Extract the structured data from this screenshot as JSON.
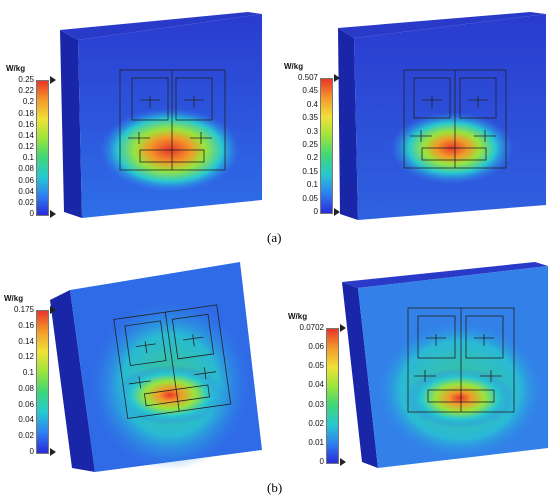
{
  "figure": {
    "captions": [
      "(a)",
      "(b)"
    ],
    "panels": [
      {
        "id": "a-left",
        "unit": "W/kg",
        "ticks": [
          "0.25",
          "0.22",
          "0.2",
          "0.18",
          "0.16",
          "0.14",
          "0.12",
          "0.1",
          "0.08",
          "0.06",
          "0.04",
          "0.02",
          "0"
        ],
        "max_label": "0.25",
        "min_label": "0"
      },
      {
        "id": "a-right",
        "unit": "W/kg",
        "ticks": [
          "0.507",
          "0.45",
          "0.4",
          "0.35",
          "0.3",
          "0.25",
          "0.2",
          "0.15",
          "0.1",
          "0.05",
          "0"
        ],
        "max_label": "0.507",
        "min_label": "0"
      },
      {
        "id": "b-left",
        "unit": "W/kg",
        "ticks": [
          "0.175",
          "0.16",
          "0.14",
          "0.12",
          "0.1",
          "0.08",
          "0.06",
          "0.04",
          "0.02",
          "0"
        ],
        "max_label": "0.175",
        "min_label": "0"
      },
      {
        "id": "b-right",
        "unit": "W/kg",
        "ticks": [
          "0.0702",
          "0.06",
          "0.05",
          "0.04",
          "0.03",
          "0.02",
          "0.01",
          "0"
        ],
        "max_label": "0.0702",
        "min_label": "0"
      }
    ],
    "colors": {
      "scale": [
        "#2a2bd8",
        "#2f7ff0",
        "#28c8d0",
        "#3fd67a",
        "#9be43c",
        "#f0e23a",
        "#f29a2a",
        "#e8352a"
      ],
      "phantom_base": "#2a46d8",
      "phantom_side": "#1a26a8"
    }
  }
}
